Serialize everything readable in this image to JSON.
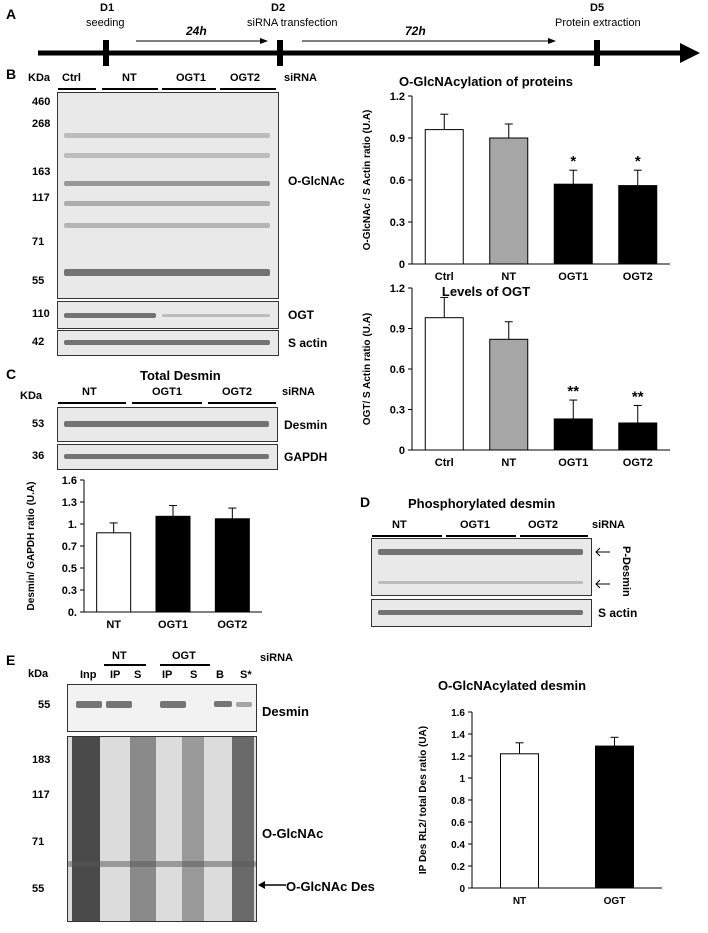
{
  "panel_a": {
    "letter": "A",
    "d1_day": "D1",
    "d1_event": "seeding",
    "interval1": "24h",
    "d2_day": "D2",
    "d2_event": "siRNA transfection",
    "interval2": "72h",
    "d5_day": "D5",
    "d5_event": "Protein extraction"
  },
  "panel_b": {
    "letter": "B",
    "kda": "KDa",
    "lanes": [
      "Ctrl",
      "NT",
      "OGT1",
      "OGT2"
    ],
    "sirna": "siRNA",
    "markers": [
      "460",
      "268",
      "163",
      "117",
      "71",
      "55"
    ],
    "label_oglcnac": "O-GlcNAc",
    "marker_ogt": "110",
    "label_ogt": "OGT",
    "marker_actin": "42",
    "label_actin": "S actin"
  },
  "panel_c": {
    "letter": "C",
    "title": "Total Desmin",
    "kda": "KDa",
    "lanes": [
      "NT",
      "OGT1",
      "OGT2"
    ],
    "sirna": "siRNA",
    "marker_desmin": "53",
    "label_desmin": "Desmin",
    "marker_gapdh": "36",
    "label_gapdh": "GAPDH"
  },
  "panel_d": {
    "letter": "D",
    "title": "Phosphorylated desmin",
    "lanes": [
      "NT",
      "OGT1",
      "OGT2"
    ],
    "sirna": "siRNA",
    "label_pdesmin": "P-Desmin",
    "label_actin": "S actin"
  },
  "panel_e": {
    "letter": "E",
    "kda": "kDa",
    "groups": [
      "NT",
      "OGT"
    ],
    "sirna": "siRNA",
    "lanes": [
      "Inp",
      "IP",
      "S",
      "IP",
      "S",
      "B",
      "S*"
    ],
    "marker_desmin": "55",
    "label_desmin": "Desmin",
    "markers": [
      "183",
      "117",
      "71",
      "55"
    ],
    "label_oglcnac": "O-GlcNAc",
    "label_oglcnac_des": "O-GlcNAc Des"
  },
  "chart_data": [
    {
      "id": "b-oglcnac",
      "type": "bar",
      "title": "O-GlcNAcylation of proteins",
      "ylabel": "O-GlcNAc / S Actin ratio (U.A)",
      "categories": [
        "Ctrl",
        "NT",
        "OGT1",
        "OGT2"
      ],
      "values": [
        0.96,
        0.9,
        0.57,
        0.56
      ],
      "errors": [
        0.11,
        0.1,
        0.1,
        0.11
      ],
      "significance": [
        "",
        "",
        "*",
        "*"
      ],
      "colors": [
        "#ffffff",
        "#a6a6a6",
        "#000000",
        "#000000"
      ],
      "yticks": [
        "0",
        "0.3",
        "0.6",
        "0.9",
        "1.2"
      ],
      "ylim": [
        0,
        1.2
      ]
    },
    {
      "id": "b-ogt",
      "type": "bar",
      "title": "Levels of OGT",
      "ylabel": "OGT/ S Actin ratio (U.A)",
      "categories": [
        "Ctrl",
        "NT",
        "OGT1",
        "OGT2"
      ],
      "values": [
        0.98,
        0.82,
        0.23,
        0.2
      ],
      "errors": [
        0.15,
        0.13,
        0.14,
        0.13
      ],
      "significance": [
        "",
        "",
        "**",
        "**"
      ],
      "colors": [
        "#ffffff",
        "#a6a6a6",
        "#000000",
        "#000000"
      ],
      "yticks": [
        "0",
        "0.3",
        "0.6",
        "0.9",
        "1.2"
      ],
      "ylim": [
        0,
        1.2
      ]
    },
    {
      "id": "c-desmin",
      "type": "bar",
      "title": "",
      "ylabel": "Desmin/ GAPDH ratio (U.A)",
      "categories": [
        "NT",
        "OGT1",
        "OGT2"
      ],
      "values": [
        0.96,
        1.16,
        1.13
      ],
      "errors": [
        0.12,
        0.13,
        0.13
      ],
      "significance": [
        "",
        "",
        ""
      ],
      "colors": [
        "#ffffff",
        "#000000",
        "#000000"
      ],
      "yticks": [
        "0.",
        "0.3",
        "0.5",
        "0.7",
        "1.",
        "1.3",
        "1.6"
      ],
      "ylim": [
        0,
        1.6
      ]
    },
    {
      "id": "e-desmin",
      "type": "bar",
      "title": "O-GlcNAcylated desmin",
      "ylabel": "IP Des RL2/ total Des ratio (UA)",
      "categories": [
        "NT",
        "OGT"
      ],
      "values": [
        1.22,
        1.29
      ],
      "errors": [
        0.1,
        0.08
      ],
      "significance": [
        "",
        ""
      ],
      "colors": [
        "#ffffff",
        "#000000"
      ],
      "yticks": [
        "0",
        "0.2",
        "0.4",
        "0.6",
        "0.8",
        "1",
        "1.2",
        "1.4",
        "1.6"
      ],
      "ylim": [
        0,
        1.6
      ]
    }
  ]
}
